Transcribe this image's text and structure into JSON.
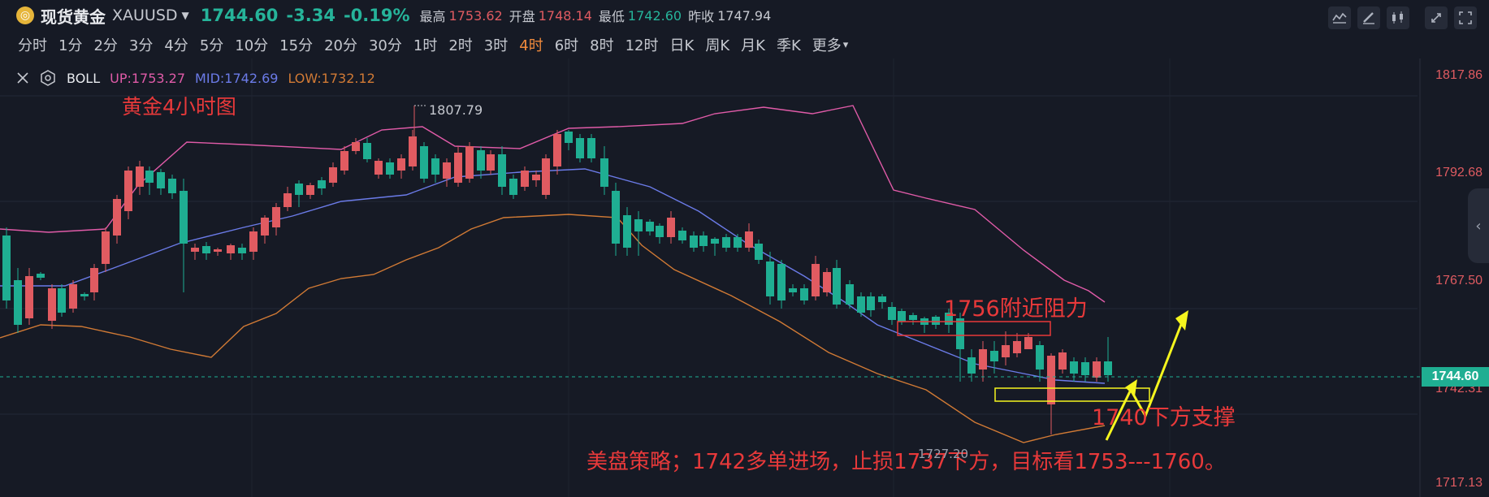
{
  "header": {
    "symbol_name": "现货黄金",
    "symbol_code": "XAUUSD",
    "last_price": "1744.60",
    "change": "-3.34",
    "change_pct": "-0.19%",
    "high_label": "最高",
    "high_value": "1753.62",
    "open_label": "开盘",
    "open_value": "1748.14",
    "low_label": "最低",
    "low_value": "1742.60",
    "prev_close_label": "昨收",
    "prev_close_value": "1747.94"
  },
  "timeframes": [
    "分时",
    "1分",
    "2分",
    "3分",
    "4分",
    "5分",
    "10分",
    "15分",
    "20分",
    "30分",
    "1时",
    "2时",
    "3时",
    "4时",
    "6时",
    "8时",
    "12时",
    "日K",
    "周K",
    "月K",
    "季K",
    "更多"
  ],
  "active_timeframe": "4时",
  "indicator": {
    "name": "BOLL",
    "up": "UP:1753.27",
    "mid": "MID:1742.69",
    "low": "LOW:1732.12"
  },
  "annotations": {
    "chart_title": "黄金4小时图",
    "resistance": "1756附近阻力",
    "support": "1740下方支撑",
    "strategy": "美盘策略；1742多单进场，止损1737下方，目标看1753---1760。",
    "peak_marker": "1807.79",
    "trough_marker": "1727.20"
  },
  "y_axis": {
    "labels": [
      "1817.86",
      "1792.68",
      "1767.50",
      "1742.31",
      "1717.13"
    ],
    "current_price_tag": "1744.60"
  },
  "colors": {
    "background": "#161a25",
    "up_candle": "#e05b61",
    "down_candle": "#1fae92",
    "boll_up": "#e05ba8",
    "boll_mid": "#6b7be8",
    "boll_low": "#d17a35",
    "annotation_red": "#e8393a",
    "arrow_yellow": "#f5f51e",
    "active_tf": "#f08a3c"
  },
  "icons": [
    "close-icon",
    "settings-hexagon-icon",
    "indicator-icon",
    "draw-icon",
    "candle-type-icon",
    "fullscreen-icon",
    "collapse-side-icon"
  ],
  "chart_data": {
    "type": "candlestick",
    "series": [
      {
        "name": "BOLL UP",
        "y_approx": "upper band"
      },
      {
        "name": "BOLL MID",
        "y_approx": "middle band"
      },
      {
        "name": "BOLL LOW",
        "y_approx": "lower band"
      }
    ],
    "ylim": [
      1717.13,
      1817.86
    ],
    "levels": {
      "resistance": 1756,
      "support": 1740,
      "current": 1744.6
    }
  }
}
